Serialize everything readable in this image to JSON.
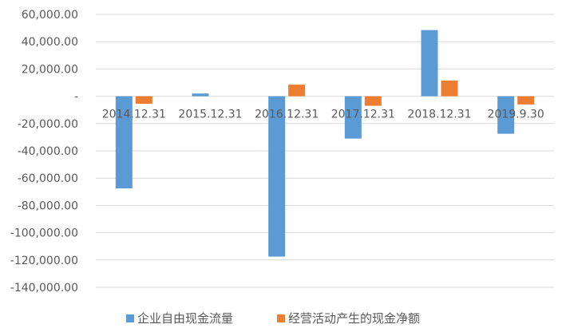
{
  "chart_data": {
    "type": "bar",
    "categories": [
      "2014.12.31",
      "2015.12.31",
      "2016.12.31",
      "2017.12.31",
      "2018.12.31",
      "2019.9.30"
    ],
    "series": [
      {
        "name": "企业自由现金流量",
        "color": "#5b9bd5",
        "values": [
          -67500,
          2000,
          -117500,
          -31000,
          48500,
          -27500
        ]
      },
      {
        "name": "经营活动产生的现金净额",
        "color": "#ed7d31",
        "values": [
          -5500,
          0,
          8500,
          -7000,
          11500,
          -6000
        ]
      }
    ],
    "y_ticks": [
      "60,000.00",
      "40,000.00",
      "20,000.00",
      "-",
      "-20,000.00",
      "-40,000.00",
      "-60,000.00",
      "-80,000.00",
      "-100,000.00",
      "-120,000.00",
      "-140,000.00"
    ],
    "ylim": [
      -140000,
      60000
    ],
    "grid": true,
    "legend_position": "bottom"
  }
}
